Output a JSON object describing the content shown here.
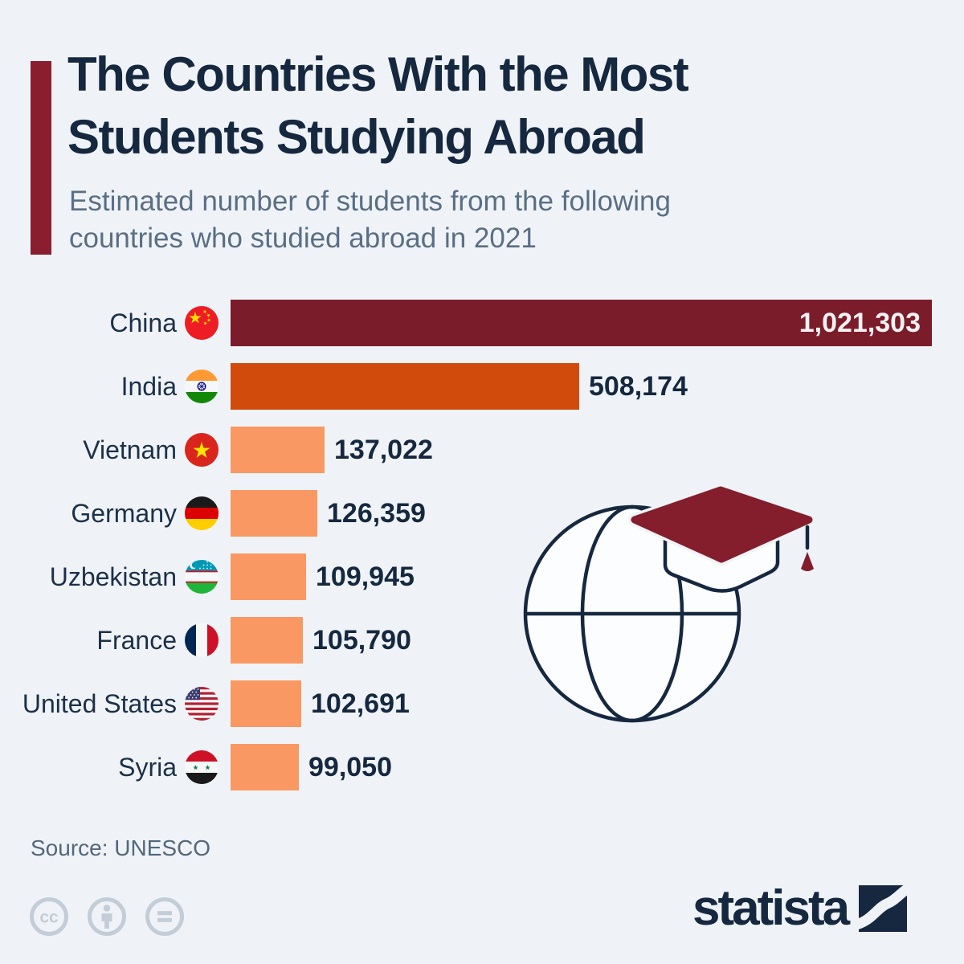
{
  "page": {
    "background_color": "#eff3f7"
  },
  "header": {
    "accent_color": "#8a1e2e",
    "title_line1": "The Countries With the Most",
    "title_line2": "Students Studying Abroad",
    "subtitle_line1": "Estimated number of students from the following",
    "subtitle_line2": "countries who studied abroad in 2021",
    "title_color": "#16283f",
    "subtitle_color": "#5a6e85"
  },
  "chart_data": {
    "type": "bar",
    "orientation": "horizontal",
    "title": "The Countries With the Most Students Studying Abroad",
    "subtitle": "Estimated number of students from the following countries who studied abroad in 2021",
    "unit": "students",
    "year": "2021",
    "grid": false,
    "legend": false,
    "max_value": 1021303,
    "categories": [
      "China",
      "India",
      "Vietnam",
      "Germany",
      "Uzbekistan",
      "France",
      "United States",
      "Syria"
    ],
    "values": [
      1021303,
      508174,
      137022,
      126359,
      109945,
      105790,
      102691,
      99050
    ],
    "value_labels": [
      "1,021,303",
      "508,174",
      "137,022",
      "126,359",
      "109,945",
      "105,790",
      "102,691",
      "99,050"
    ],
    "rows": [
      {
        "label": "China",
        "flag": "china-flag-icon",
        "value": 1021303,
        "display": "1,021,303",
        "color": "#7a1c2a",
        "value_inside": true
      },
      {
        "label": "India",
        "flag": "india-flag-icon",
        "value": 508174,
        "display": "508,174",
        "color": "#d14b0d",
        "value_inside": false
      },
      {
        "label": "Vietnam",
        "flag": "vietnam-flag-icon",
        "value": 137022,
        "display": "137,022",
        "color": "#f99862",
        "value_inside": false
      },
      {
        "label": "Germany",
        "flag": "germany-flag-icon",
        "value": 126359,
        "display": "126,359",
        "color": "#f99862",
        "value_inside": false
      },
      {
        "label": "Uzbekistan",
        "flag": "uzbekistan-flag-icon",
        "value": 109945,
        "display": "109,945",
        "color": "#f99862",
        "value_inside": false
      },
      {
        "label": "France",
        "flag": "france-flag-icon",
        "value": 105790,
        "display": "105,790",
        "color": "#f99862",
        "value_inside": false
      },
      {
        "label": "United States",
        "flag": "united-states-flag-icon",
        "value": 102691,
        "display": "102,691",
        "color": "#f99862",
        "value_inside": false
      },
      {
        "label": "Syria",
        "flag": "syria-flag-icon",
        "value": 99050,
        "display": "99,050",
        "color": "#f99862",
        "value_inside": false
      }
    ],
    "bar_palette": {
      "rank1": "#7a1c2a",
      "rank2": "#d14b0d",
      "others": "#f99862"
    },
    "value_label_color": "#16283f",
    "value_label_color_inside": "#f4f1f2"
  },
  "illustration": {
    "name": "globe-with-graduation-cap",
    "stroke_color": "#16283f",
    "cap_color": "#841e2c",
    "fill_color": "#fcfdff"
  },
  "footer": {
    "source_label": "Source: UNESCO",
    "license_icons": [
      "cc-icon",
      "attribution-icon",
      "equals-icon"
    ],
    "license_icon_color": "#c3cdd7",
    "brand": "statista",
    "brand_color": "#16283f"
  }
}
